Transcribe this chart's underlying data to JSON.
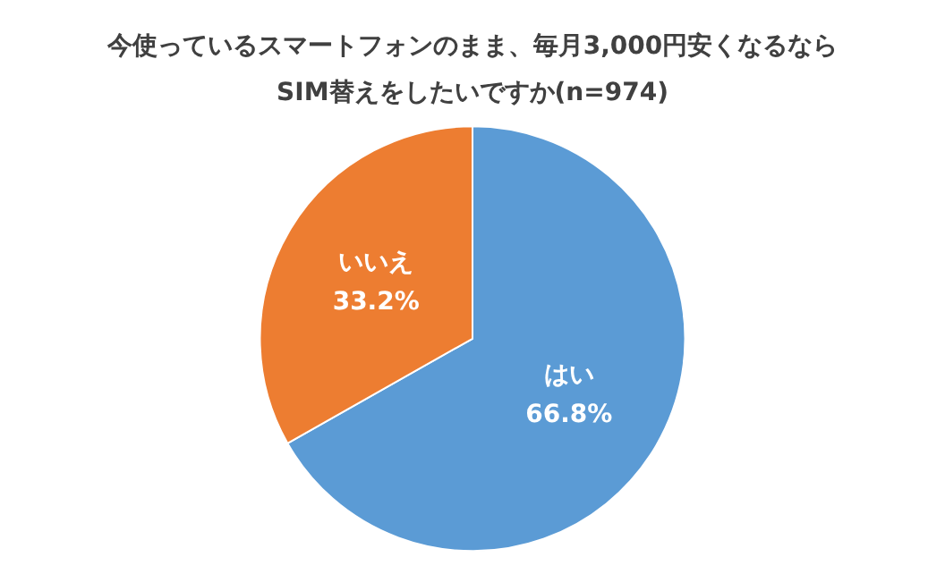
{
  "chart_data": {
    "type": "pie",
    "title": "今使っているスマートフォンのまま、毎月3,000円安くなるなら\nSIM替えをしたいですか(n=974)",
    "categories": [
      "はい",
      "いいえ"
    ],
    "values": [
      66.8,
      33.2
    ],
    "colors": [
      "#5b9bd5",
      "#ed7d31"
    ],
    "value_labels": [
      "66.8%",
      "33.2%"
    ],
    "legend": false
  }
}
